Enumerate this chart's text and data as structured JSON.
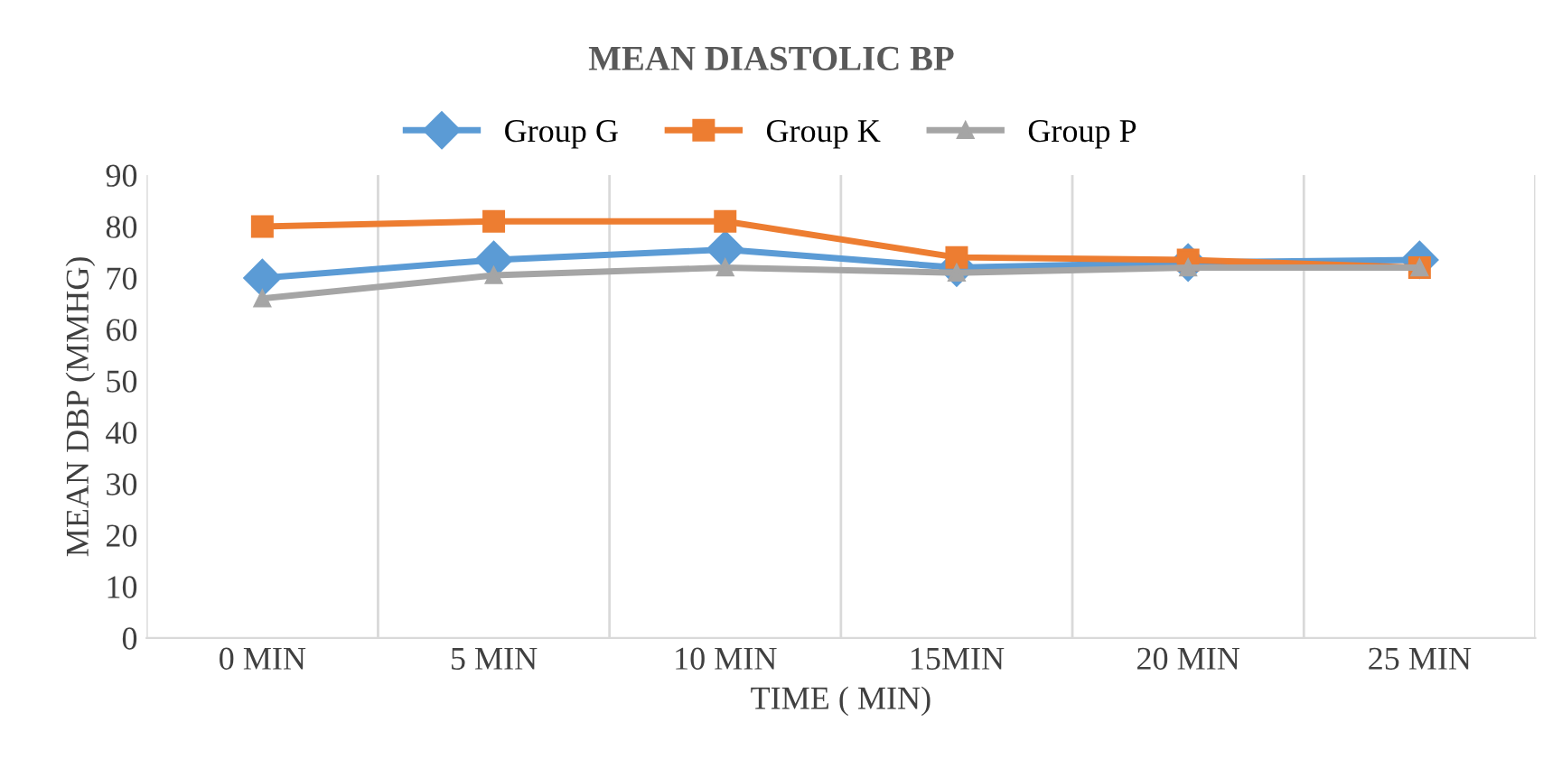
{
  "chart_data": {
    "type": "line",
    "title": "MEAN DIASTOLIC BP",
    "xlabel": "TIME ( MIN)",
    "ylabel": "MEAN DBP (MMHG)",
    "categories": [
      "0 MIN",
      "5 MIN",
      "10 MIN",
      "15MIN",
      "20 MIN",
      "25 MIN"
    ],
    "series": [
      {
        "name": "Group G",
        "color": "#5b9bd5",
        "marker": "diamond",
        "values": [
          70,
          73.5,
          75.5,
          72,
          73,
          73.5
        ]
      },
      {
        "name": "Group K",
        "color": "#ed7d31",
        "marker": "square",
        "values": [
          80,
          81,
          81,
          74,
          73.5,
          72
        ]
      },
      {
        "name": "Group P",
        "color": "#a5a5a5",
        "marker": "triangle",
        "values": [
          66,
          70.5,
          72,
          71,
          72,
          72
        ]
      }
    ],
    "ylim": [
      0,
      90
    ],
    "yticks": [
      0,
      10,
      20,
      30,
      40,
      50,
      60,
      70,
      80,
      90
    ],
    "grid": "x",
    "legend": "top"
  }
}
